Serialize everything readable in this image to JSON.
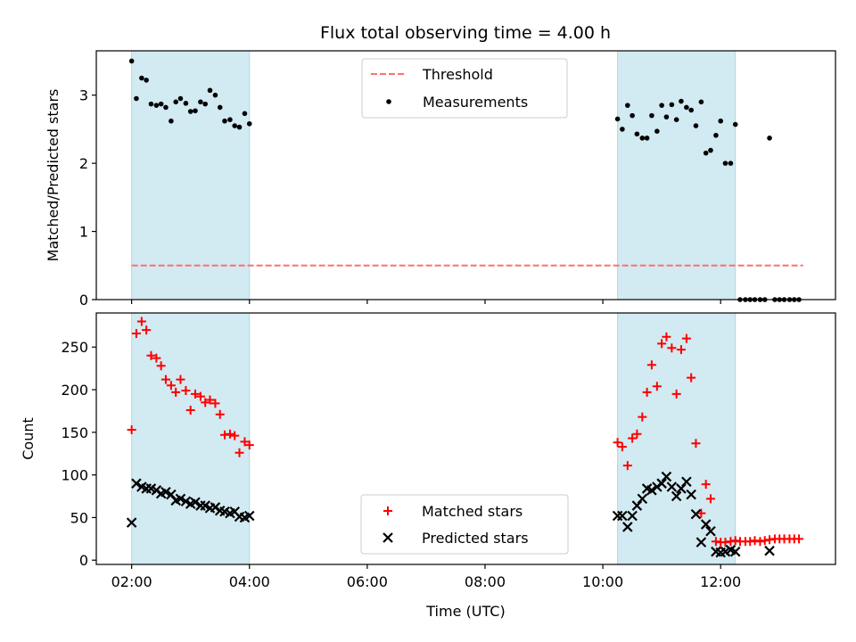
{
  "title": "Flux total observing time = 4.00 h",
  "colors": {
    "shade": "#add8e6",
    "threshold": "#ff6f6f",
    "matched": "#ff0000",
    "predicted": "#000000",
    "measurement": "#000000"
  },
  "chart_data": [
    {
      "type": "scatter",
      "ylabel": "Matched/Predicted stars",
      "xlim": [
        1.4,
        13.95
      ],
      "ylim": [
        0,
        3.65
      ],
      "yticks": [
        0,
        1,
        2,
        3
      ],
      "xticks": [
        2,
        4,
        6,
        8,
        10,
        12
      ],
      "shaded_intervals": [
        [
          2.0,
          4.0
        ],
        [
          10.25,
          12.25
        ]
      ],
      "threshold": {
        "name": "Threshold",
        "value": 0.5,
        "x_range": [
          2.0,
          13.4
        ]
      },
      "legend": [
        "Threshold",
        "Measurements"
      ],
      "legend_position": "upper-center",
      "series": [
        {
          "name": "Measurements",
          "points": [
            [
              2.0,
              3.5
            ],
            [
              2.08,
              2.95
            ],
            [
              2.17,
              3.25
            ],
            [
              2.25,
              3.22
            ],
            [
              2.33,
              2.87
            ],
            [
              2.42,
              2.85
            ],
            [
              2.5,
              2.87
            ],
            [
              2.58,
              2.82
            ],
            [
              2.67,
              2.62
            ],
            [
              2.75,
              2.9
            ],
            [
              2.83,
              2.95
            ],
            [
              2.92,
              2.88
            ],
            [
              3.0,
              2.76
            ],
            [
              3.08,
              2.77
            ],
            [
              3.17,
              2.9
            ],
            [
              3.25,
              2.87
            ],
            [
              3.33,
              3.07
            ],
            [
              3.42,
              3.0
            ],
            [
              3.5,
              2.82
            ],
            [
              3.58,
              2.62
            ],
            [
              3.67,
              2.64
            ],
            [
              3.75,
              2.55
            ],
            [
              3.83,
              2.53
            ],
            [
              3.92,
              2.73
            ],
            [
              4.0,
              2.58
            ],
            [
              10.25,
              2.65
            ],
            [
              10.33,
              2.5
            ],
            [
              10.42,
              2.85
            ],
            [
              10.5,
              2.7
            ],
            [
              10.58,
              2.43
            ],
            [
              10.67,
              2.37
            ],
            [
              10.75,
              2.37
            ],
            [
              10.83,
              2.7
            ],
            [
              10.92,
              2.47
            ],
            [
              11.0,
              2.85
            ],
            [
              11.08,
              2.68
            ],
            [
              11.17,
              2.86
            ],
            [
              11.25,
              2.64
            ],
            [
              11.33,
              2.91
            ],
            [
              11.42,
              2.82
            ],
            [
              11.5,
              2.78
            ],
            [
              11.58,
              2.55
            ],
            [
              11.67,
              2.9
            ],
            [
              11.75,
              2.15
            ],
            [
              11.83,
              2.19
            ],
            [
              11.92,
              2.41
            ],
            [
              12.0,
              2.62
            ],
            [
              12.08,
              2.0
            ],
            [
              12.17,
              2.0
            ],
            [
              12.25,
              2.57
            ],
            [
              12.33,
              0
            ],
            [
              12.42,
              0
            ],
            [
              12.5,
              0
            ],
            [
              12.58,
              0
            ],
            [
              12.67,
              0
            ],
            [
              12.75,
              0
            ],
            [
              12.83,
              2.37
            ],
            [
              12.92,
              0
            ],
            [
              13.0,
              0
            ],
            [
              13.08,
              0
            ],
            [
              13.17,
              0
            ],
            [
              13.25,
              0
            ],
            [
              13.33,
              0
            ]
          ]
        }
      ]
    },
    {
      "type": "scatter",
      "xlabel": "Time (UTC)",
      "ylabel": "Count",
      "xlim": [
        1.4,
        13.95
      ],
      "ylim": [
        -5,
        290
      ],
      "yticks": [
        0,
        50,
        100,
        150,
        200,
        250
      ],
      "xticks": [
        2,
        4,
        6,
        8,
        10,
        12
      ],
      "xtick_labels": [
        "02:00",
        "04:00",
        "06:00",
        "08:00",
        "10:00",
        "12:00"
      ],
      "shaded_intervals": [
        [
          2.0,
          4.0
        ],
        [
          10.25,
          12.25
        ]
      ],
      "legend": [
        "Matched stars",
        "Predicted stars"
      ],
      "legend_position": "lower-center",
      "series": [
        {
          "name": "Matched stars",
          "marker": "plus",
          "points": [
            [
              2.0,
              153
            ],
            [
              2.08,
              266
            ],
            [
              2.17,
              280
            ],
            [
              2.25,
              270
            ],
            [
              2.33,
              240
            ],
            [
              2.42,
              237
            ],
            [
              2.5,
              228
            ],
            [
              2.58,
              212
            ],
            [
              2.67,
              205
            ],
            [
              2.75,
              197
            ],
            [
              2.83,
              212
            ],
            [
              2.92,
              199
            ],
            [
              3.0,
              176
            ],
            [
              3.08,
              195
            ],
            [
              3.17,
              192
            ],
            [
              3.25,
              185
            ],
            [
              3.33,
              188
            ],
            [
              3.42,
              184
            ],
            [
              3.5,
              171
            ],
            [
              3.58,
              147
            ],
            [
              3.67,
              148
            ],
            [
              3.75,
              146
            ],
            [
              3.83,
              126
            ],
            [
              3.92,
              139
            ],
            [
              4.0,
              135
            ],
            [
              10.25,
              138
            ],
            [
              10.33,
              133
            ],
            [
              10.42,
              111
            ],
            [
              10.5,
              143
            ],
            [
              10.58,
              148
            ],
            [
              10.67,
              168
            ],
            [
              10.75,
              197
            ],
            [
              10.83,
              229
            ],
            [
              10.92,
              204
            ],
            [
              11.0,
              254
            ],
            [
              11.08,
              262
            ],
            [
              11.17,
              249
            ],
            [
              11.25,
              195
            ],
            [
              11.33,
              247
            ],
            [
              11.42,
              260
            ],
            [
              11.5,
              214
            ],
            [
              11.58,
              137
            ],
            [
              11.67,
              55
            ],
            [
              11.75,
              89
            ],
            [
              11.83,
              72
            ],
            [
              11.92,
              22
            ],
            [
              12.0,
              21
            ],
            [
              12.08,
              21
            ],
            [
              12.17,
              22
            ],
            [
              12.25,
              23
            ],
            [
              12.33,
              22
            ],
            [
              12.42,
              22
            ],
            [
              12.5,
              22
            ],
            [
              12.58,
              23
            ],
            [
              12.67,
              22
            ],
            [
              12.75,
              23
            ],
            [
              12.83,
              24
            ],
            [
              12.92,
              25
            ],
            [
              13.0,
              25
            ],
            [
              13.08,
              25
            ],
            [
              13.17,
              25
            ],
            [
              13.25,
              25
            ],
            [
              13.33,
              25
            ]
          ]
        },
        {
          "name": "Predicted stars",
          "marker": "x",
          "points": [
            [
              2.0,
              44
            ],
            [
              2.08,
              90
            ],
            [
              2.17,
              86
            ],
            [
              2.25,
              84
            ],
            [
              2.33,
              84
            ],
            [
              2.42,
              82
            ],
            [
              2.5,
              78
            ],
            [
              2.58,
              80
            ],
            [
              2.67,
              77
            ],
            [
              2.75,
              70
            ],
            [
              2.83,
              72
            ],
            [
              2.92,
              69
            ],
            [
              3.0,
              66
            ],
            [
              3.08,
              68
            ],
            [
              3.17,
              64
            ],
            [
              3.25,
              64
            ],
            [
              3.33,
              61
            ],
            [
              3.42,
              62
            ],
            [
              3.5,
              58
            ],
            [
              3.58,
              57
            ],
            [
              3.67,
              55
            ],
            [
              3.75,
              57
            ],
            [
              3.83,
              51
            ],
            [
              3.92,
              50
            ],
            [
              4.0,
              52
            ],
            [
              10.25,
              52
            ],
            [
              10.33,
              52
            ],
            [
              10.42,
              39
            ],
            [
              10.5,
              52
            ],
            [
              10.58,
              64
            ],
            [
              10.67,
              72
            ],
            [
              10.75,
              84
            ],
            [
              10.83,
              82
            ],
            [
              10.92,
              86
            ],
            [
              11.0,
              90
            ],
            [
              11.08,
              98
            ],
            [
              11.17,
              86
            ],
            [
              11.25,
              75
            ],
            [
              11.33,
              84
            ],
            [
              11.42,
              92
            ],
            [
              11.5,
              77
            ],
            [
              11.58,
              54
            ],
            [
              11.67,
              21
            ],
            [
              11.75,
              42
            ],
            [
              11.83,
              34
            ],
            [
              11.92,
              10
            ],
            [
              12.0,
              9
            ],
            [
              12.08,
              10
            ],
            [
              12.17,
              12
            ],
            [
              12.25,
              10
            ],
            [
              12.83,
              11
            ]
          ]
        }
      ]
    }
  ]
}
